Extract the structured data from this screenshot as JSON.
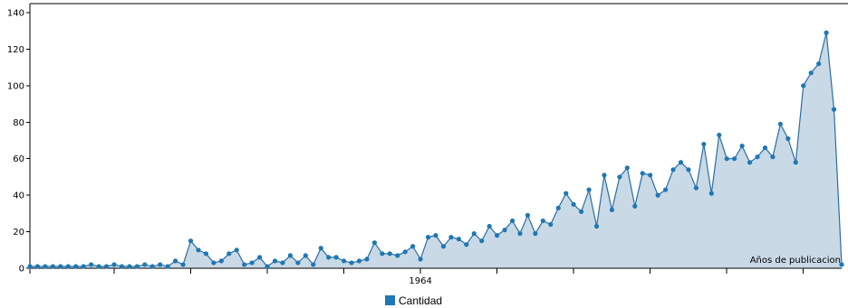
{
  "colors": {
    "line": "#2a6ea6",
    "area": "#c9d9e6",
    "marker": "#1f77b4",
    "legend_swatch": "#1f77b4"
  },
  "chart_data": {
    "type": "area",
    "title": "",
    "xlabel": "Años de publicacion",
    "ylabel": "",
    "ylim": [
      0,
      140
    ],
    "yticks": [
      0,
      20,
      40,
      60,
      80,
      100,
      120,
      140
    ],
    "xtick_labels": [
      {
        "index": 51,
        "label": "1964"
      }
    ],
    "x_tick_indices": [
      0,
      11,
      21,
      31,
      41,
      51,
      61,
      71,
      81,
      91,
      101
    ],
    "grid": false,
    "legend_position": "bottom-center",
    "series": [
      {
        "name": "Cantidad",
        "values": [
          1,
          1,
          1,
          1,
          1,
          1,
          1,
          1,
          2,
          1,
          1,
          2,
          1,
          1,
          1,
          2,
          1,
          2,
          1,
          4,
          2,
          15,
          10,
          8,
          3,
          4,
          8,
          10,
          2,
          3,
          6,
          1,
          4,
          3,
          7,
          3,
          7,
          2,
          11,
          6,
          6,
          4,
          3,
          4,
          5,
          14,
          8,
          8,
          7,
          9,
          12,
          5,
          17,
          18,
          12,
          17,
          16,
          13,
          19,
          15,
          23,
          18,
          21,
          26,
          19,
          29,
          19,
          26,
          24,
          33,
          41,
          35,
          31,
          43,
          23,
          51,
          32,
          50,
          55,
          34,
          52,
          51,
          40,
          43,
          54,
          58,
          54,
          44,
          68,
          41,
          73,
          60,
          60,
          67,
          58,
          61,
          66,
          61,
          79,
          71,
          58,
          100,
          107,
          112,
          129,
          87,
          2
        ]
      }
    ]
  }
}
